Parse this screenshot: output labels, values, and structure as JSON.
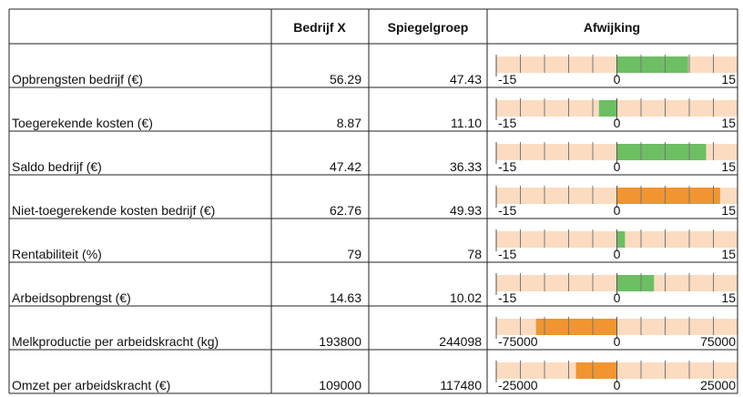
{
  "header": {
    "columns": [
      "Bedrijf X",
      "Spiegelgroep",
      "Afwijking"
    ]
  },
  "rows": [
    {
      "label": "Opbrengsten bedrijf (€)",
      "bedrijf": "56.29",
      "spiegel": "47.43",
      "afwijking": 8.86,
      "color": "#6cbf62",
      "xlim": [
        -15,
        15
      ],
      "xticks": [
        -15,
        0,
        15
      ],
      "minor_xticks": [
        -12,
        -9,
        -6,
        -3,
        3,
        6,
        9,
        12
      ]
    },
    {
      "label": "Toegerekende kosten (€)",
      "bedrijf": "8.87",
      "spiegel": "11.10",
      "afwijking": -2.23,
      "color": "#6cbf62",
      "xlim": [
        -15,
        15
      ],
      "xticks": [
        -15,
        0,
        15
      ],
      "minor_xticks": [
        -12,
        -9,
        -6,
        -3,
        3,
        6,
        9,
        12
      ]
    },
    {
      "label": "Saldo bedrijf (€)",
      "bedrijf": "47.42",
      "spiegel": "36.33",
      "afwijking": 11.09,
      "color": "#6cbf62",
      "xlim": [
        -15,
        15
      ],
      "xticks": [
        -15,
        0,
        15
      ],
      "minor_xticks": [
        -12,
        -9,
        -6,
        -3,
        3,
        6,
        9,
        12
      ]
    },
    {
      "label": "Niet-toegerekende kosten bedrijf (€)",
      "bedrijf": "62.76",
      "spiegel": "49.93",
      "afwijking": 12.83,
      "color": "#f0952f",
      "xlim": [
        -15,
        15
      ],
      "xticks": [
        -15,
        0,
        15
      ],
      "minor_xticks": [
        -12,
        -9,
        -6,
        -3,
        3,
        6,
        9,
        12
      ]
    },
    {
      "label": "Rentabiliteit (%)",
      "bedrijf": "79",
      "spiegel": "78",
      "afwijking": 1,
      "color": "#6cbf62",
      "xlim": [
        -15,
        15
      ],
      "xticks": [
        -15,
        0,
        15
      ],
      "minor_xticks": [
        -12,
        -9,
        -6,
        -3,
        3,
        6,
        9,
        12
      ]
    },
    {
      "label": "Arbeidsopbrengst (€)",
      "bedrijf": "14.63",
      "spiegel": "10.02",
      "afwijking": 4.61,
      "color": "#6cbf62",
      "xlim": [
        -15,
        15
      ],
      "xticks": [
        -15,
        0,
        15
      ],
      "minor_xticks": [
        -12,
        -9,
        -6,
        -3,
        3,
        6,
        9,
        12
      ]
    },
    {
      "label": "Melkproductie per arbeidskracht (kg)",
      "bedrijf": "193800",
      "spiegel": "244098",
      "afwijking": -50298,
      "color": "#f0952f",
      "xlim": [
        -75000,
        75000
      ],
      "xticks": [
        -75000,
        0,
        75000
      ],
      "minor_xticks": [
        -60000,
        -45000,
        -30000,
        -15000,
        15000,
        30000,
        45000,
        60000
      ]
    },
    {
      "label": "Omzet per arbeidskracht (€)",
      "bedrijf": "109000",
      "spiegel": "117480",
      "afwijking": -8480,
      "color": "#f0952f",
      "xlim": [
        -25000,
        25000
      ],
      "xticks": [
        -25000,
        0,
        25000
      ],
      "minor_xticks": [
        -20000,
        -15000,
        -10000,
        -5000,
        5000,
        10000,
        15000,
        20000
      ]
    }
  ]
}
